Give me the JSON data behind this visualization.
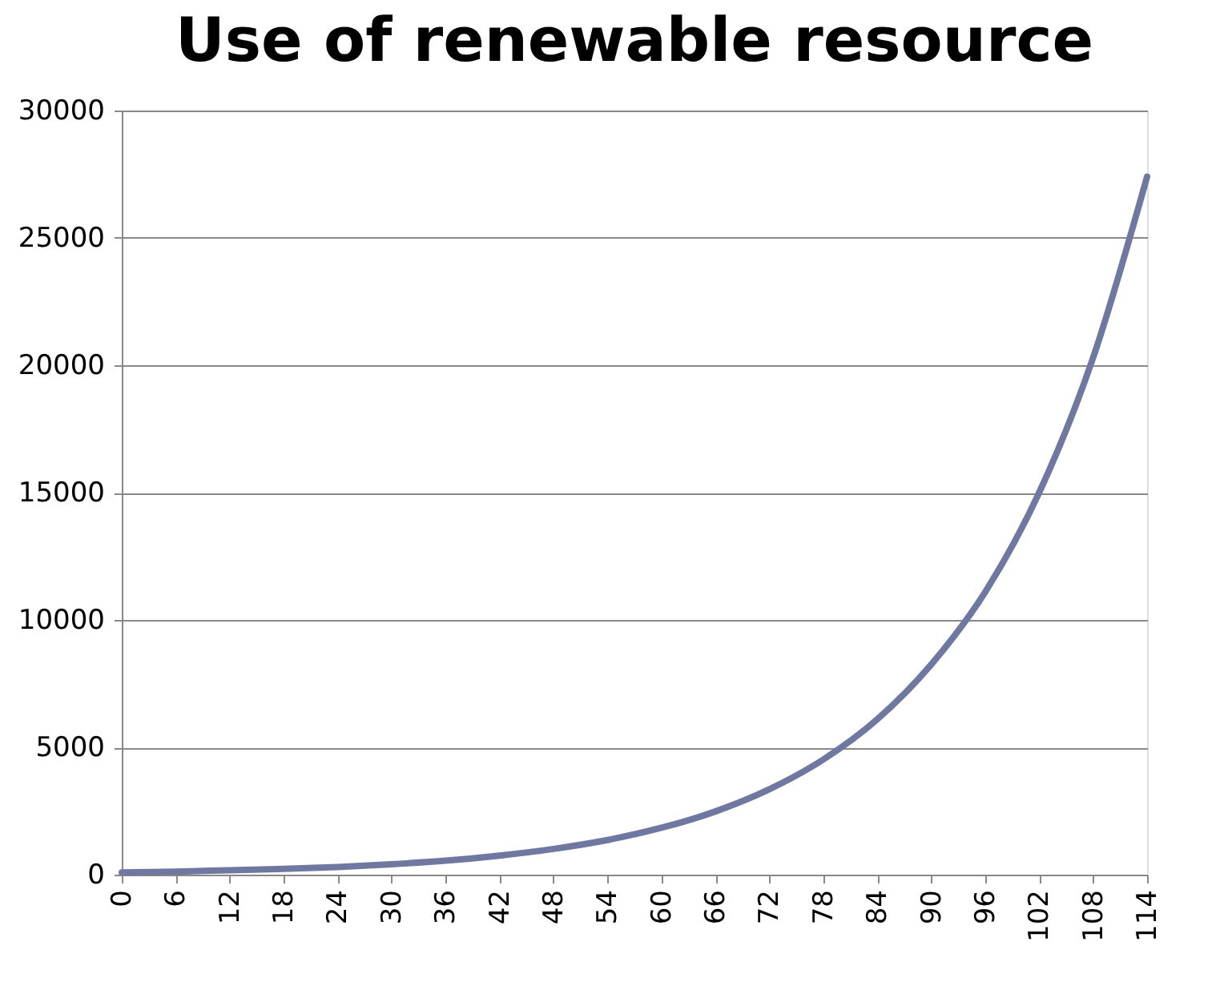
{
  "chart_data": {
    "type": "line",
    "title": "Use of renewable resource",
    "x": [
      0,
      6,
      12,
      18,
      24,
      30,
      36,
      42,
      48,
      54,
      60,
      66,
      72,
      78,
      84,
      90,
      96,
      102,
      108,
      114
    ],
    "series": [
      {
        "color": "#6e78a0",
        "values": [
          90,
          120,
          170,
          230,
          300,
          410,
          550,
          750,
          1010,
          1360,
          1840,
          2480,
          3350,
          4520,
          6100,
          8250,
          11100,
          15000,
          20300,
          27400
        ]
      }
    ],
    "xlim": [
      0,
      114
    ],
    "xticks": [
      0,
      6,
      12,
      18,
      24,
      30,
      36,
      42,
      48,
      54,
      60,
      66,
      72,
      78,
      84,
      90,
      96,
      102,
      108,
      114
    ],
    "ylim": [
      0,
      30000
    ],
    "yticks": [
      0,
      5000,
      10000,
      15000,
      20000,
      25000,
      30000
    ],
    "grid": "y",
    "marker": "none",
    "line_style": "solid"
  }
}
